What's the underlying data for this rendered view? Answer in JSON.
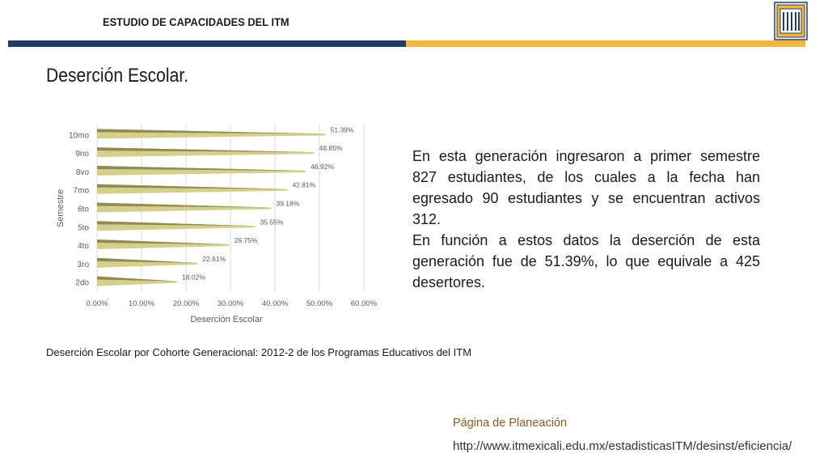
{
  "header": {
    "title": "ESTUDIO DE CAPACIDADES DEL ITM"
  },
  "page": {
    "title": "Deserción Escolar."
  },
  "chart_data": {
    "type": "bar",
    "orientation": "horizontal",
    "categories": [
      "2do",
      "3ro",
      "4to",
      "5to",
      "6to",
      "7mo",
      "8vo",
      "9no",
      "10mo"
    ],
    "values": [
      18.02,
      22.61,
      29.75,
      35.55,
      39.18,
      42.81,
      46.92,
      48.85,
      51.39
    ],
    "data_labels": [
      "18.02%",
      "22.61%",
      "29.75%",
      "35.55%",
      "39.18%",
      "42.81%",
      "46.92%",
      "48.85%",
      "51.39%"
    ],
    "xlabel": "Deserción Escolar",
    "ylabel": "Semestre",
    "xlim": [
      0,
      60
    ],
    "x_ticks": [
      "0.00%",
      "10.00%",
      "20.00%",
      "30.00%",
      "40.00%",
      "50.00%",
      "60.00%"
    ],
    "grid": true,
    "colors": {
      "bar": "#d4d08c",
      "bar_dark": "#8f8b52",
      "grid": "#d9d9d9"
    }
  },
  "body": {
    "paragraph1": "En esta generación ingresaron a primer semestre 827 estudiantes, de los cuales a la fecha han egresado 90 estudiantes y se encuentran activos 312.",
    "paragraph2": "En función a estos datos la deserción de esta generación fue de 51.39%, lo que equivale a 425 desertores."
  },
  "caption": "Deserción Escolar por Cohorte Generacional: 2012-2 de los Programas Educativos del ITM",
  "footer": {
    "label": "Página de Planeación",
    "url": "http://www.itmexicali.edu.mx/estadisticasITM/desinst/eficiencia/"
  },
  "colors": {
    "band_blue": "#203d66",
    "band_gold": "#f2b63c",
    "footer_label": "#8a5a1e"
  }
}
